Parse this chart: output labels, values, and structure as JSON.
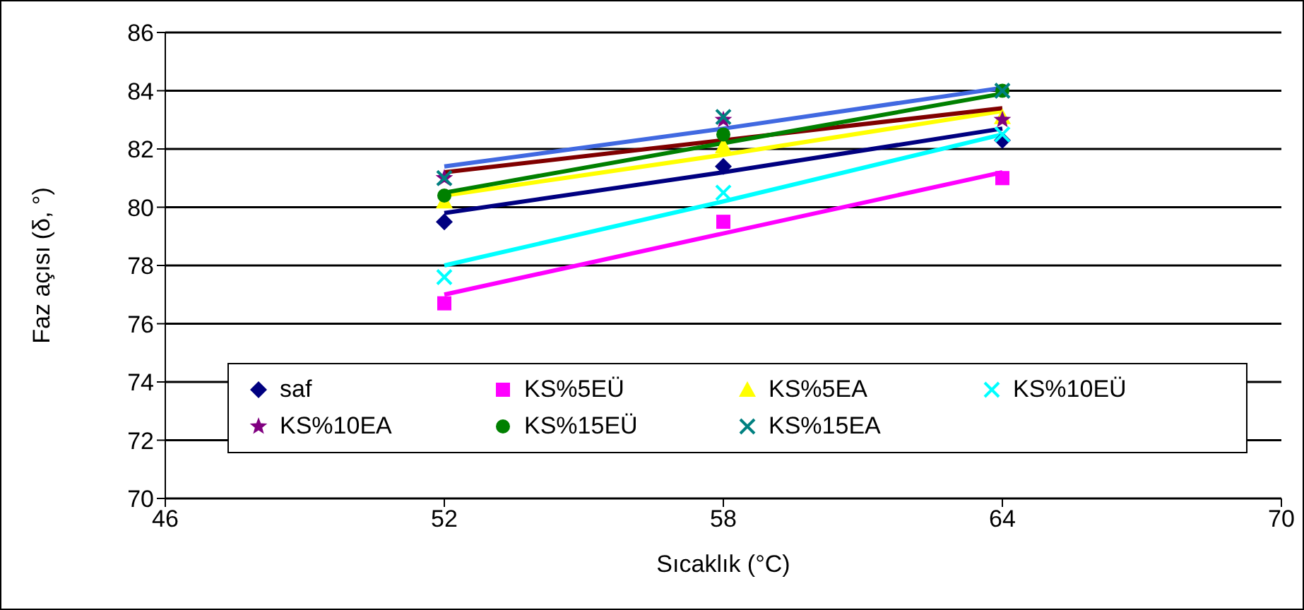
{
  "chart_data": {
    "type": "scatter",
    "xlabel": "Sıcaklık (°C)",
    "ylabel": "Faz açısı (δ, °)",
    "x": [
      52,
      58,
      64
    ],
    "xlim": [
      46,
      70
    ],
    "xticks": [
      46,
      52,
      58,
      64,
      70
    ],
    "ylim": [
      70,
      86
    ],
    "yticks": [
      70,
      72,
      74,
      76,
      78,
      80,
      82,
      84,
      86
    ],
    "grid": "y",
    "legend": "bottom",
    "series": [
      {
        "name": "saf",
        "color": "#000080",
        "marker": "diamond",
        "values": [
          79.5,
          81.4,
          82.3
        ]
      },
      {
        "name": "KS%5EÜ",
        "color": "#ff00ff",
        "marker": "square",
        "values": [
          76.7,
          79.5,
          81.0
        ]
      },
      {
        "name": "KS%5EA",
        "color": "#ffff00",
        "marker": "triangle",
        "values": [
          80.2,
          82.1,
          83.1
        ]
      },
      {
        "name": "KS%10EÜ",
        "color": "#00ffff",
        "marker": "cross",
        "values": [
          77.6,
          80.5,
          82.5
        ]
      },
      {
        "name": "KS%10EA",
        "color": "#800080",
        "marker": "star",
        "values": [
          81.0,
          83.0,
          83.0
        ]
      },
      {
        "name": "KS%15EÜ",
        "color": "#008000",
        "marker": "circle",
        "values": [
          80.4,
          82.5,
          84.0
        ]
      },
      {
        "name": "KS%15EA",
        "color": "#008080",
        "marker": "cross",
        "values": [
          81.0,
          83.1,
          84.0
        ]
      },
      {
        "type": "line",
        "color": "#000080",
        "values": [
          79.8,
          81.2,
          82.7
        ]
      },
      {
        "type": "line",
        "color": "#ff00ff",
        "values": [
          77.0,
          79.1,
          81.2
        ]
      },
      {
        "type": "line",
        "color": "#ffff00",
        "values": [
          80.4,
          81.8,
          83.3
        ]
      },
      {
        "type": "line",
        "color": "#00ffff",
        "values": [
          78.0,
          80.2,
          82.5
        ]
      },
      {
        "type": "line",
        "color": "#800000",
        "values": [
          81.2,
          82.3,
          83.4
        ]
      },
      {
        "type": "line",
        "color": "#008000",
        "values": [
          80.5,
          82.2,
          83.9
        ]
      },
      {
        "type": "line",
        "color": "#4169e1",
        "values": [
          81.4,
          82.7,
          84.1
        ]
      }
    ]
  }
}
